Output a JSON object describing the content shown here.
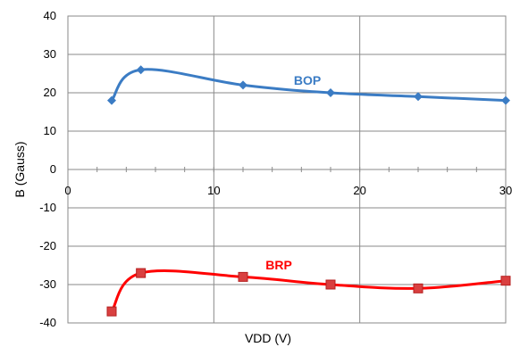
{
  "chart_data": {
    "type": "line",
    "title": "",
    "xlabel": "VDD  (V)",
    "ylabel": "B (Gauss)",
    "xlim": [
      0,
      30
    ],
    "ylim": [
      -40,
      40
    ],
    "xticks": [
      0,
      10,
      20,
      30
    ],
    "yticks": [
      40,
      30,
      20,
      10,
      0,
      -10,
      -20,
      -30,
      -40
    ],
    "xtick_labels": [
      "0",
      "10",
      "20",
      "30"
    ],
    "ytick_labels": [
      "40",
      "30",
      "20",
      "10",
      "0",
      "-10",
      "-20",
      "-30",
      "-40"
    ],
    "grid": true,
    "series": [
      {
        "name": "BOP",
        "color": "#3b7cc4",
        "marker": "diamond",
        "x": [
          3,
          5,
          12,
          18,
          24,
          30
        ],
        "y": [
          18,
          26,
          22,
          20,
          19,
          18
        ]
      },
      {
        "name": "BRP",
        "color": "#ff0000",
        "marker": "square",
        "x": [
          3,
          5,
          12,
          18,
          24,
          30
        ],
        "y": [
          -37,
          -27,
          -28,
          -30,
          -31,
          -29
        ]
      }
    ]
  }
}
